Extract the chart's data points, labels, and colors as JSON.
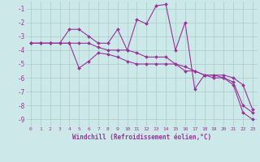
{
  "xlabel": "Windchill (Refroidissement éolien,°C)",
  "x_hours": [
    0,
    1,
    2,
    3,
    4,
    5,
    6,
    7,
    8,
    9,
    10,
    11,
    12,
    13,
    14,
    15,
    16,
    17,
    18,
    19,
    20,
    21,
    22,
    23
  ],
  "series1": [
    -3.5,
    -3.5,
    -3.5,
    -3.5,
    -2.5,
    -2.5,
    -3.0,
    -3.5,
    -3.5,
    -2.5,
    -4.0,
    -1.8,
    -2.1,
    -0.8,
    -0.7,
    -4.0,
    -2.0,
    -6.8,
    -5.8,
    -5.8,
    -6.0,
    -6.5,
    -8.5,
    -9.0
  ],
  "series2": [
    -3.5,
    -3.5,
    -3.5,
    -3.5,
    -3.5,
    -5.3,
    -4.8,
    -4.2,
    -4.3,
    -4.5,
    -4.8,
    -5.0,
    -5.0,
    -5.0,
    -5.0,
    -5.0,
    -5.2,
    -5.5,
    -5.8,
    -5.8,
    -5.8,
    -6.0,
    -6.5,
    -8.3
  ],
  "series3": [
    -3.5,
    -3.5,
    -3.5,
    -3.5,
    -3.5,
    -3.5,
    -3.5,
    -3.8,
    -4.0,
    -4.0,
    -4.0,
    -4.2,
    -4.5,
    -4.5,
    -4.5,
    -5.0,
    -5.5,
    -5.5,
    -5.8,
    -6.0,
    -6.0,
    -6.3,
    -8.0,
    -8.5
  ],
  "line_color": "#993399",
  "bg_color": "#cce8e8",
  "grid_color": "#aacccc",
  "ylim": [
    -9.5,
    -0.5
  ],
  "yticks": [
    -1,
    -2,
    -3,
    -4,
    -5,
    -6,
    -7,
    -8,
    -9
  ],
  "marker": "D",
  "markersize": 2,
  "linewidth": 0.8
}
